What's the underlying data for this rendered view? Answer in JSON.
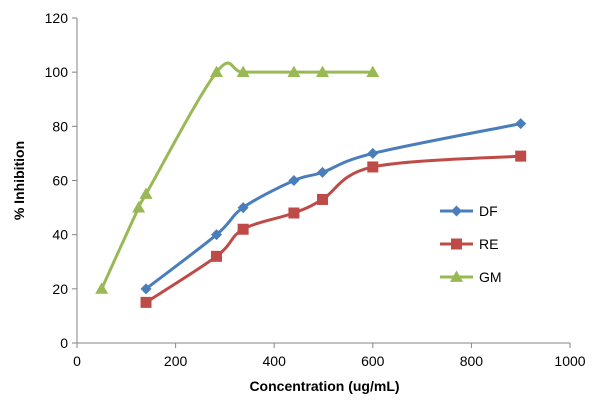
{
  "chart_data": {
    "type": "line",
    "title": "",
    "xlabel": "Concentration (ug/mL)",
    "ylabel": "% Inhibition",
    "xlim": [
      0,
      1000
    ],
    "ylim": [
      0,
      120
    ],
    "x_ticks": [
      "0",
      "200",
      "400",
      "600",
      "800",
      "1000"
    ],
    "y_ticks": [
      "0",
      "20",
      "40",
      "60",
      "80",
      "100",
      "120"
    ],
    "grid": false,
    "legend_position": "right",
    "smooth": true,
    "series": [
      {
        "name": "DF",
        "color": "#4a7ebb",
        "marker": "diamond",
        "x": [
          140,
          283,
          337,
          440,
          498,
          600,
          900
        ],
        "y": [
          20,
          40,
          50,
          60,
          63,
          70,
          81
        ]
      },
      {
        "name": "RE",
        "color": "#be4b48",
        "marker": "square",
        "x": [
          140,
          283,
          337,
          440,
          498,
          600,
          900
        ],
        "y": [
          15,
          32,
          42,
          48,
          53,
          65,
          69
        ]
      },
      {
        "name": "GM",
        "color": "#98b954",
        "marker": "triangle",
        "x": [
          50,
          125,
          140,
          283,
          337,
          440,
          498,
          600
        ],
        "y": [
          20,
          50,
          55,
          100,
          100,
          100,
          100,
          100
        ]
      }
    ]
  }
}
